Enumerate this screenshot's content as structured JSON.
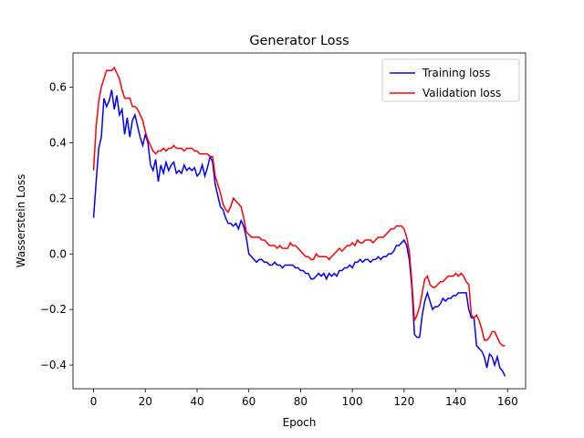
{
  "chart_data": {
    "type": "line",
    "title": "Generator Loss",
    "x_label": "Epoch",
    "y_label": "Wasserstein Loss",
    "x": [
      0,
      1,
      2,
      3,
      4,
      5,
      6,
      7,
      8,
      9,
      10,
      11,
      12,
      13,
      14,
      15,
      16,
      17,
      18,
      19,
      20,
      21,
      22,
      23,
      24,
      25,
      26,
      27,
      28,
      29,
      30,
      31,
      32,
      33,
      34,
      35,
      36,
      37,
      38,
      39,
      40,
      41,
      42,
      43,
      44,
      45,
      46,
      47,
      48,
      49,
      50,
      51,
      52,
      53,
      54,
      55,
      56,
      57,
      58,
      59,
      60,
      61,
      62,
      63,
      64,
      65,
      66,
      67,
      68,
      69,
      70,
      71,
      72,
      73,
      74,
      75,
      76,
      77,
      78,
      79,
      80,
      81,
      82,
      83,
      84,
      85,
      86,
      87,
      88,
      89,
      90,
      91,
      92,
      93,
      94,
      95,
      96,
      97,
      98,
      99,
      100,
      101,
      102,
      103,
      104,
      105,
      106,
      107,
      108,
      109,
      110,
      111,
      112,
      113,
      114,
      115,
      116,
      117,
      118,
      119,
      120,
      121,
      122,
      123,
      124,
      125,
      126,
      127,
      128,
      129,
      130,
      131,
      132,
      133,
      134,
      135,
      136,
      137,
      138,
      139,
      140,
      141,
      142,
      143,
      144,
      145,
      146,
      147,
      148,
      149,
      150,
      151,
      152,
      153,
      154,
      155,
      156,
      157,
      158,
      159
    ],
    "series": [
      {
        "name": "Training loss",
        "color": "#0000ff",
        "values": [
          0.13,
          0.26,
          0.38,
          0.42,
          0.56,
          0.53,
          0.55,
          0.59,
          0.52,
          0.57,
          0.5,
          0.52,
          0.43,
          0.49,
          0.42,
          0.48,
          0.5,
          0.46,
          0.42,
          0.39,
          0.43,
          0.4,
          0.32,
          0.3,
          0.34,
          0.26,
          0.32,
          0.29,
          0.33,
          0.3,
          0.32,
          0.33,
          0.29,
          0.3,
          0.29,
          0.32,
          0.3,
          0.31,
          0.3,
          0.31,
          0.28,
          0.29,
          0.32,
          0.28,
          0.31,
          0.35,
          0.33,
          0.25,
          0.21,
          0.17,
          0.16,
          0.13,
          0.11,
          0.11,
          0.1,
          0.11,
          0.09,
          0.12,
          0.1,
          0.06,
          0.0,
          -0.01,
          -0.02,
          -0.03,
          -0.02,
          -0.02,
          -0.03,
          -0.03,
          -0.04,
          -0.04,
          -0.03,
          -0.04,
          -0.04,
          -0.05,
          -0.04,
          -0.04,
          -0.04,
          -0.04,
          -0.05,
          -0.05,
          -0.06,
          -0.06,
          -0.07,
          -0.07,
          -0.09,
          -0.09,
          -0.08,
          -0.07,
          -0.08,
          -0.07,
          -0.09,
          -0.07,
          -0.08,
          -0.07,
          -0.08,
          -0.06,
          -0.06,
          -0.05,
          -0.05,
          -0.04,
          -0.05,
          -0.03,
          -0.03,
          -0.02,
          -0.03,
          -0.02,
          -0.02,
          -0.03,
          -0.02,
          -0.02,
          -0.01,
          -0.02,
          -0.01,
          -0.01,
          0.0,
          0.0,
          0.01,
          0.03,
          0.03,
          0.04,
          0.05,
          0.03,
          -0.02,
          -0.12,
          -0.29,
          -0.3,
          -0.3,
          -0.22,
          -0.17,
          -0.14,
          -0.17,
          -0.2,
          -0.19,
          -0.19,
          -0.18,
          -0.16,
          -0.17,
          -0.16,
          -0.16,
          -0.15,
          -0.15,
          -0.14,
          -0.14,
          -0.14,
          -0.14,
          -0.2,
          -0.23,
          -0.23,
          -0.33,
          -0.34,
          -0.35,
          -0.37,
          -0.41,
          -0.36,
          -0.37,
          -0.4,
          -0.37,
          -0.41,
          -0.42,
          -0.44
        ]
      },
      {
        "name": "Validation loss",
        "color": "#ff0000",
        "values": [
          0.3,
          0.46,
          0.55,
          0.6,
          0.63,
          0.66,
          0.66,
          0.66,
          0.67,
          0.65,
          0.63,
          0.59,
          0.56,
          0.56,
          0.56,
          0.53,
          0.53,
          0.52,
          0.5,
          0.48,
          0.44,
          0.41,
          0.39,
          0.37,
          0.36,
          0.37,
          0.37,
          0.38,
          0.37,
          0.38,
          0.38,
          0.39,
          0.38,
          0.38,
          0.38,
          0.37,
          0.38,
          0.38,
          0.38,
          0.37,
          0.37,
          0.36,
          0.36,
          0.36,
          0.36,
          0.35,
          0.35,
          0.28,
          0.25,
          0.22,
          0.18,
          0.16,
          0.15,
          0.17,
          0.2,
          0.19,
          0.18,
          0.17,
          0.13,
          0.08,
          0.07,
          0.06,
          0.06,
          0.06,
          0.06,
          0.05,
          0.05,
          0.04,
          0.03,
          0.03,
          0.03,
          0.02,
          0.03,
          0.02,
          0.02,
          0.02,
          0.04,
          0.03,
          0.03,
          0.02,
          0.01,
          0.0,
          -0.01,
          -0.01,
          -0.02,
          -0.02,
          0.0,
          -0.01,
          -0.01,
          -0.01,
          -0.01,
          -0.02,
          -0.01,
          0.0,
          0.01,
          0.02,
          0.01,
          0.02,
          0.03,
          0.03,
          0.04,
          0.03,
          0.05,
          0.04,
          0.04,
          0.05,
          0.05,
          0.05,
          0.04,
          0.05,
          0.06,
          0.06,
          0.06,
          0.07,
          0.08,
          0.09,
          0.09,
          0.1,
          0.1,
          0.1,
          0.09,
          0.06,
          0.01,
          -0.1,
          -0.24,
          -0.22,
          -0.19,
          -0.14,
          -0.09,
          -0.08,
          -0.11,
          -0.12,
          -0.12,
          -0.11,
          -0.1,
          -0.1,
          -0.09,
          -0.08,
          -0.08,
          -0.08,
          -0.07,
          -0.08,
          -0.07,
          -0.08,
          -0.1,
          -0.11,
          -0.22,
          -0.23,
          -0.22,
          -0.24,
          -0.27,
          -0.31,
          -0.31,
          -0.3,
          -0.28,
          -0.28,
          -0.3,
          -0.32,
          -0.33,
          -0.33
        ]
      }
    ],
    "xlim": [
      -7.95,
      166.95
    ],
    "xticks": [
      0,
      20,
      40,
      60,
      80,
      100,
      120,
      140,
      160
    ],
    "ylim": [
      -0.485,
      0.723
    ],
    "yticks": [
      {
        "value": -0.4,
        "label": "−0.4"
      },
      {
        "value": -0.2,
        "label": "−0.2"
      },
      {
        "value": 0,
        "label": "0.0"
      },
      0.2,
      0.4,
      0.6
    ],
    "legend": "upper right"
  }
}
